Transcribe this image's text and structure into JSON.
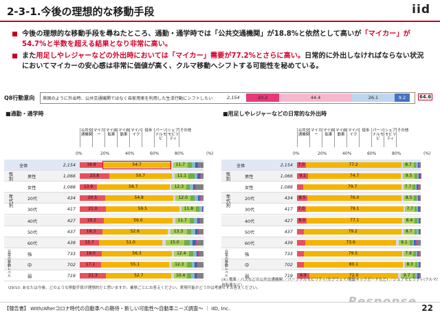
{
  "header": {
    "title": "2-3-1.今後の理想的な移動手段",
    "logo": "iid"
  },
  "bullets": [
    {
      "parts": [
        [
          "今後の理想的な移動手段を尋ねたところ、通勤・通学時では「公共交通機関」が18.8%と依然として高いが",
          ""
        ],
        [
          "「マイカー」が54.7%と半数を超える結果となり非常に高い。",
          "red"
        ]
      ]
    },
    {
      "parts": [
        [
          "また",
          ""
        ],
        [
          "用足しやレジャーなどの外出時においては「マイカー」需要が77.2%とさらに高い。",
          "red"
        ],
        [
          "日常的に外出しなければならない状況においてマイカーの安心感は非常に価値が高く、クルマ移動へシフトする可能性を秘めている。",
          ""
        ]
      ]
    }
  ],
  "q8": {
    "label": "Q8行動意向",
    "question": "来国のように外出時、公共交通機関ではなく自家用車を利用した生活行動にシフトしたい",
    "n": "2,154",
    "score": "64.6",
    "segments": [
      {
        "value": 20.2,
        "color": "#e8397a",
        "label": "20.2"
      },
      {
        "value": 44.4,
        "color": "#f6b8cf",
        "label": "44.4"
      },
      {
        "value": 26.1,
        "color": "#bdd7ee",
        "label": "26.1"
      },
      {
        "value": 9.2,
        "color": "#4472c4",
        "label": "9.2"
      }
    ]
  },
  "legend_items": [
    "公共交通機関",
    "マイカー",
    "マイ自転車",
    "マイ自動車",
    "マイバイク",
    "徒歩",
    "パーソナルモビ",
    "シェアモビリティ",
    "その他"
  ],
  "axis_ticks": [
    "0%",
    "20%",
    "40%",
    "60%",
    "80%"
  ],
  "axis_unit": "(%)",
  "colors": [
    "#e8505b",
    "#f4b400",
    "#d9d9d9",
    "#a9cf54",
    "#70ad47",
    "#7fbfbf",
    "#3f5fbf",
    "#c0409f",
    "#808080"
  ],
  "group_labels": [
    "性別",
    "年代別",
    "日常の移動レベル"
  ],
  "chart_data": [
    {
      "type": "bar",
      "title": "■通勤・通学時",
      "categories": [
        "全体",
        "男性",
        "女性",
        "20代",
        "30代",
        "40代",
        "50代",
        "60代",
        "強",
        "中",
        "弱"
      ],
      "n": [
        "2,154",
        "1,066",
        "1,088",
        "434",
        "417",
        "427",
        "437",
        "439",
        "733",
        "702",
        "719"
      ],
      "series": [
        {
          "name": "公共交通機関",
          "values": [
            18.8,
            23.8,
            13.9,
            20.5,
            21.0,
            19.2,
            18.3,
            15.7,
            18.0,
            17.1,
            21.3
          ]
        },
        {
          "name": "マイカー",
          "values": [
            54.7,
            50.7,
            58.7,
            54.8,
            59.5,
            56.0,
            52.6,
            51.0,
            56.3,
            55.1,
            52.7
          ]
        },
        {
          "name": "マイ自転車",
          "values": [
            2.0,
            2.4,
            1.5,
            2.2,
            1.6,
            1.8,
            2.2,
            2.5,
            1.6,
            2.1,
            2.3
          ]
        },
        {
          "name": "マイ自動車",
          "values": [
            11.7,
            11.1,
            12.3,
            12.0,
            11.8,
            11.7,
            13.3,
            15.0,
            12.4,
            12.3,
            10.4
          ]
        },
        {
          "name": "マイバイク",
          "values": [
            3.6,
            5.0,
            2.3,
            3.5,
            3.0,
            3.5,
            3.6,
            4.5,
            3.4,
            3.8,
            3.5
          ]
        },
        {
          "name": "徒歩",
          "values": [
            2.5,
            2.2,
            2.8,
            2.5,
            1.8,
            2.7,
            3.2,
            2.6,
            2.5,
            2.5,
            2.6
          ]
        },
        {
          "name": "パーソナルモビ",
          "values": [
            1.5,
            1.8,
            1.2,
            1.4,
            0.8,
            1.5,
            1.6,
            2.0,
            1.6,
            1.4,
            1.5
          ]
        },
        {
          "name": "シェアモビリティ",
          "values": [
            1.0,
            1.0,
            1.1,
            1.0,
            0.5,
            1.1,
            1.2,
            1.3,
            1.1,
            1.0,
            1.0
          ]
        },
        {
          "name": "その他",
          "values": [
            4.2,
            2.0,
            6.2,
            2.1,
            0.0,
            2.5,
            4.0,
            5.4,
            3.1,
            4.7,
            4.7
          ]
        }
      ],
      "xlim": [
        0,
        100
      ],
      "highlight": {
        "category": "全体",
        "series": "マイカー"
      }
    },
    {
      "type": "bar",
      "title": "■用足しやレジャーなどの日常的な外出時",
      "categories": [
        "全体",
        "男性",
        "女性",
        "20代",
        "30代",
        "40代",
        "50代",
        "60代",
        "強",
        "中",
        "弱"
      ],
      "n": [
        "2,154",
        "1,066",
        "1,088",
        "434",
        "417",
        "427",
        "437",
        "439",
        "733",
        "702",
        "719"
      ],
      "series": [
        {
          "name": "公共交通機関",
          "values": [
            7.0,
            9.1,
            5.0,
            8.5,
            7.0,
            8.0,
            5.5,
            6.6,
            5.5,
            5.7,
            9.9
          ]
        },
        {
          "name": "マイカー",
          "values": [
            77.2,
            74.7,
            79.7,
            76.0,
            79.1,
            77.1,
            79.2,
            73.6,
            79.5,
            80.1,
            72.0
          ]
        },
        {
          "name": "マイ自転車",
          "values": [
            1.5,
            1.8,
            1.2,
            1.6,
            1.3,
            1.5,
            1.4,
            1.9,
            1.2,
            1.3,
            2.0
          ]
        },
        {
          "name": "マイ自動車",
          "values": [
            8.7,
            9.5,
            7.7,
            8.5,
            7.7,
            8.4,
            8.7,
            9.1,
            7.8,
            8.3,
            9.7
          ]
        },
        {
          "name": "マイバイク",
          "values": [
            2.0,
            2.1,
            1.9,
            2.0,
            1.8,
            2.0,
            2.1,
            2.2,
            2.0,
            1.8,
            2.2
          ]
        },
        {
          "name": "徒歩",
          "values": [
            1.2,
            1.1,
            1.4,
            1.2,
            1.1,
            1.3,
            1.2,
            1.3,
            1.2,
            1.1,
            1.4
          ]
        },
        {
          "name": "パーソナルモビ",
          "values": [
            0.8,
            0.9,
            0.7,
            0.8,
            0.7,
            0.8,
            0.8,
            1.0,
            0.8,
            0.7,
            0.9
          ]
        },
        {
          "name": "シェアモビリティ",
          "values": [
            0.6,
            0.6,
            0.7,
            0.7,
            0.6,
            0.6,
            0.7,
            0.8,
            0.6,
            0.6,
            0.7
          ]
        },
        {
          "name": "その他",
          "values": [
            1.0,
            0.2,
            1.7,
            0.7,
            0.7,
            0.3,
            0.4,
            3.5,
            1.4,
            0.4,
            1.2
          ]
        }
      ],
      "xlim": [
        0,
        100
      ]
    }
  ],
  "legend_note": "(※) 電車・バスなどの公共交通機関 ／パーソナルモビリティ(セグウェイ/電動キックボードなど) ／シェアモビリティ(クルマ/自転車など)",
  "footnote": "Q9/10. あなたは今後、どのような移動手段が理想的だと思いますか。業態ごとにお答えください。実現可能かどうかは考慮せずお答えください。",
  "footer": {
    "text": "【報告書】 With/Afterコロナ時代の自動車への期待・新しい可能性～自動車ニーズ調査～ ｜ IID, Inc.",
    "page": "22",
    "watermark": "Response"
  }
}
